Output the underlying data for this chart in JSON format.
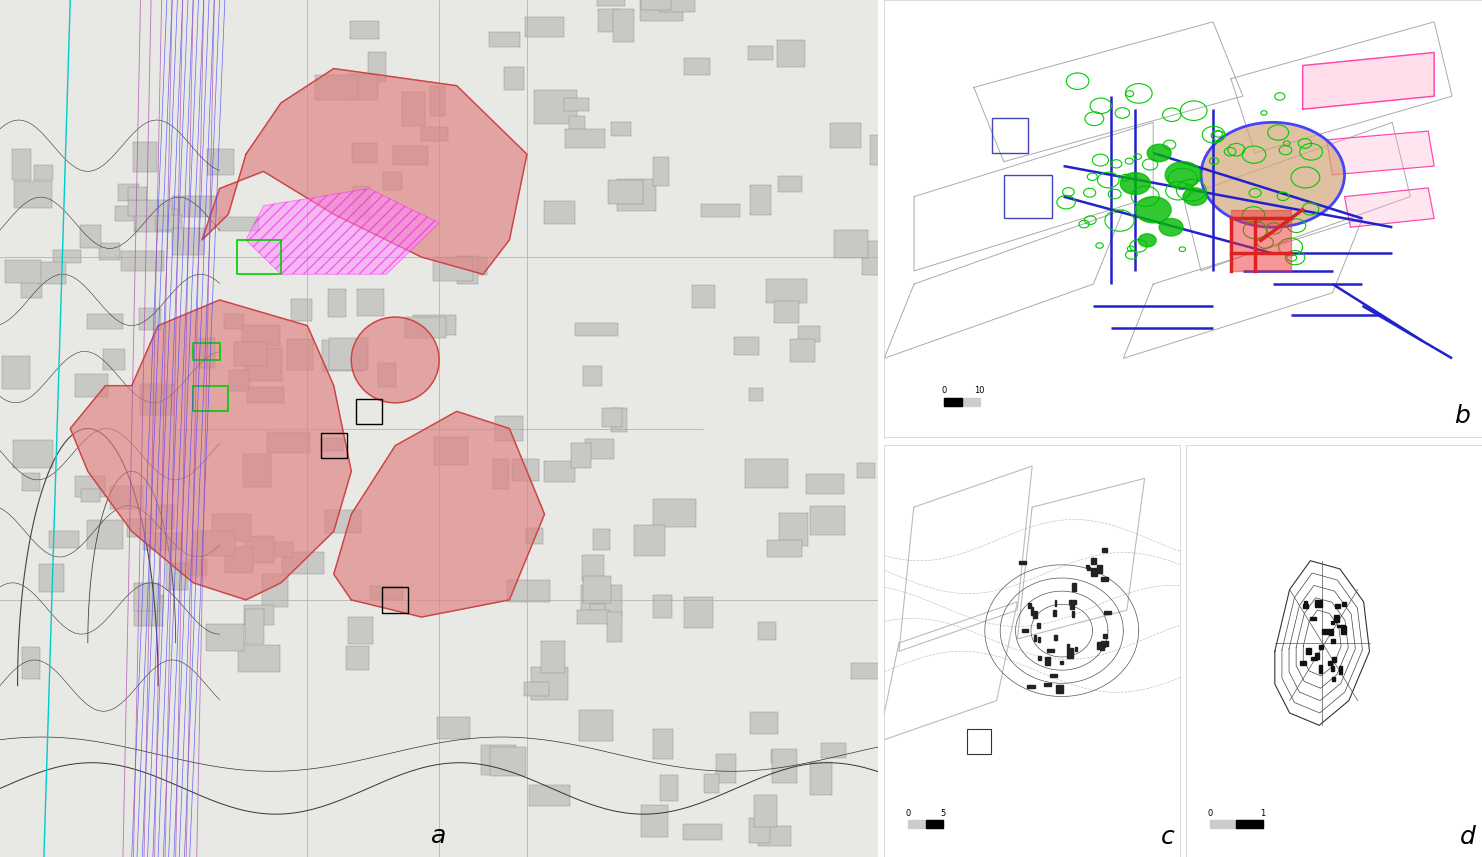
{
  "background_color": "#ffffff",
  "panel_a_label": "a",
  "panel_b_label": "b",
  "panel_c_label": "c",
  "panel_d_label": "d",
  "label_fontsize": 18,
  "scalebar_color": "#000000",
  "scalebar_bg": "#d0d0d0",
  "panel_b_scale_label": "10",
  "panel_c_scale_label": "5",
  "panel_d_scale_label": "1",
  "fig_width": 14.82,
  "fig_height": 8.57,
  "map_bg": "#f5f5f0",
  "hatching_color": "#e88888",
  "red_fill": "#e08080",
  "red_alpha": 0.65,
  "magenta_line": "#ff00ff",
  "blue_line": "#4444ff",
  "green_fill": "#00cc00",
  "green_line": "#00aa00",
  "pink_rect": "#ff88cc",
  "tan_circle": "#d2a679",
  "red_struct": "#ff2222",
  "outline_color": "#555555",
  "thin_line": "#aaaaaa",
  "panel_border": "#cccccc",
  "panel_bg": "#f8f8f8"
}
